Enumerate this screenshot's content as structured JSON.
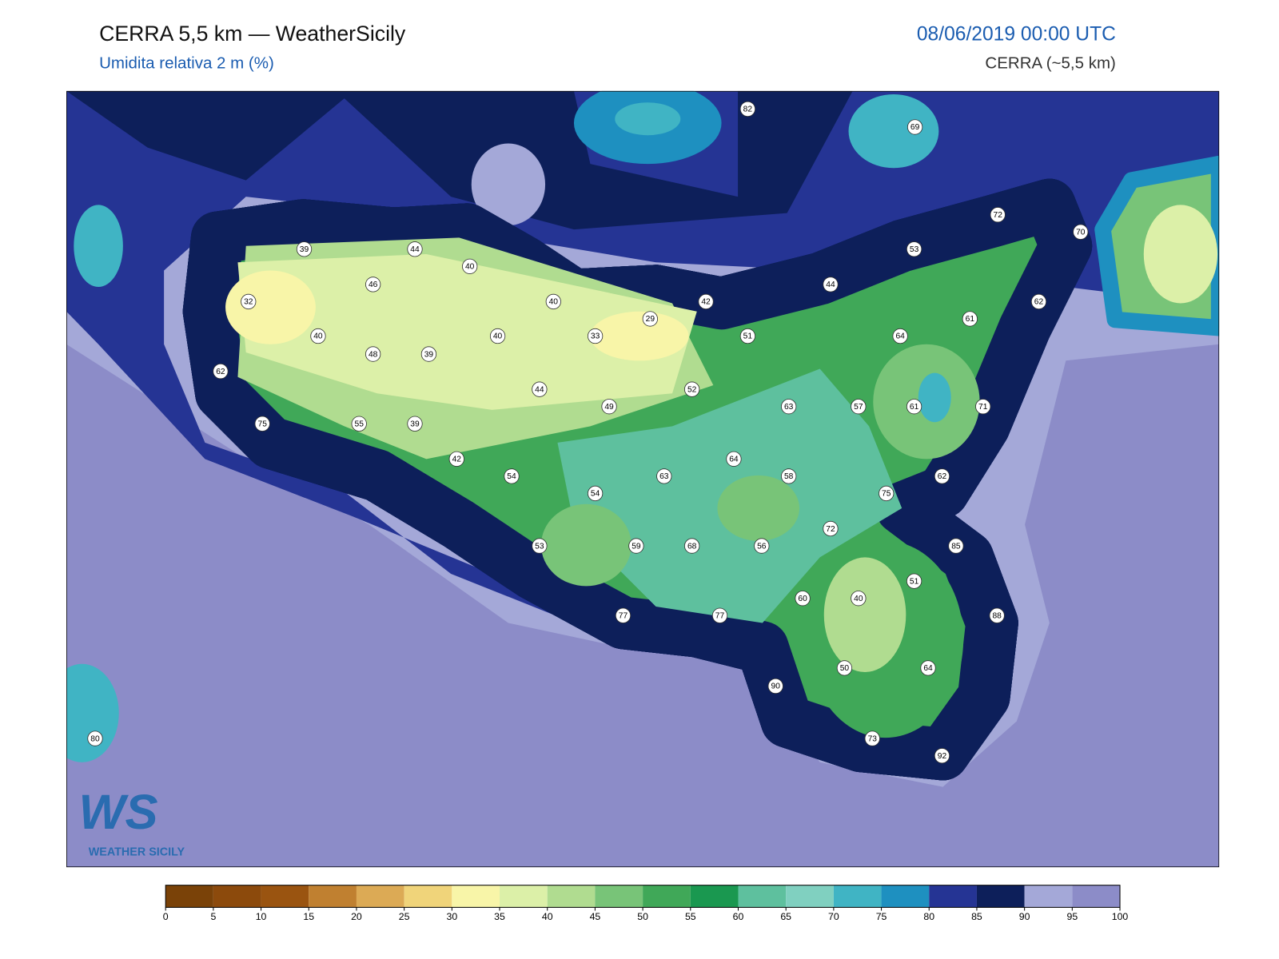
{
  "header": {
    "title": "CERRA 5,5 km — WeatherSicily",
    "subtitle": "Umidita relativa 2 m (%)",
    "datetime": "08/06/2019 00:00 UTC",
    "model": "CERRA (~5,5 km)"
  },
  "stations": {
    "values": [
      82,
      69,
      72,
      70,
      39,
      44,
      40,
      53,
      46,
      44,
      32,
      40,
      42,
      62,
      29,
      61,
      40,
      40,
      33,
      51,
      64,
      48,
      39,
      62,
      44,
      52,
      49,
      63,
      57,
      61,
      71,
      75,
      55,
      39,
      42,
      64,
      54,
      63,
      58,
      62,
      54,
      75,
      72,
      53,
      59,
      68,
      56,
      85,
      51,
      60,
      40,
      77,
      77,
      88,
      64,
      50,
      90,
      73,
      92,
      80
    ]
  },
  "colorbar": {
    "ticks": [
      0,
      5,
      10,
      15,
      20,
      25,
      30,
      35,
      40,
      45,
      50,
      55,
      60,
      65,
      70,
      75,
      80,
      85,
      90,
      95,
      100
    ],
    "colors": [
      "#7a4208",
      "#8c4a0c",
      "#9a5410",
      "#c08030",
      "#dcaa55",
      "#f0d47a",
      "#f8f5a8",
      "#dcf0a8",
      "#b0dc90",
      "#78c478",
      "#40a858",
      "#1a9850",
      "#5ec09e",
      "#80d0c0",
      "#40b4c4",
      "#1e90c0",
      "#253494",
      "#0d1f5a",
      "#a4a8d8",
      "#8c8cc8"
    ]
  },
  "logo": {
    "mark": "WS",
    "caption": "WEATHER SICILY"
  }
}
